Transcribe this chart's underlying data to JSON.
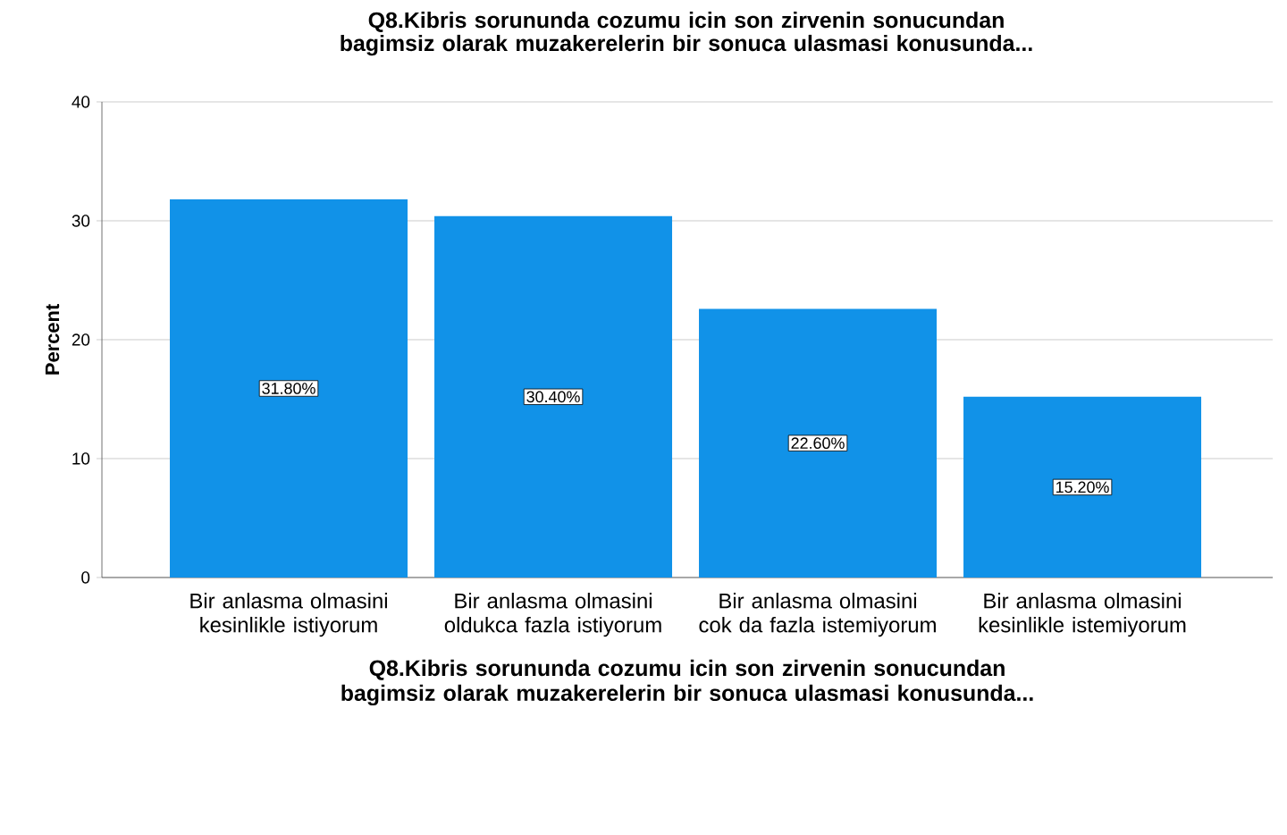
{
  "chart_data": {
    "type": "bar",
    "title": "Q8.Kibris sorununda cozumu icin son zirvenin sonucundan bagimsiz olarak muzakerelerin bir sonuca ulasmasi konusunda...",
    "xlabel": "Q8.Kibris sorununda cozumu icin son zirvenin sonucundan bagimsiz olarak muzakerelerin bir sonuca ulasmasi konusunda...",
    "ylabel": "Percent",
    "categories": [
      "Bir anlasma olmasini kesinlikle istiyorum",
      "Bir anlasma olmasini oldukca fazla istiyorum",
      "Bir anlasma olmasini cok da fazla istemiyorum",
      "Bir anlasma olmasini kesinlikle istemiyorum"
    ],
    "values": [
      31.8,
      30.4,
      22.6,
      15.2
    ],
    "value_labels": [
      "31.80%",
      "30.40%",
      "22.60%",
      "15.20%"
    ],
    "color": "#1192e8",
    "ylim": [
      0,
      40
    ],
    "yticks": [
      0,
      10,
      20,
      30,
      40
    ],
    "grid": "y"
  }
}
